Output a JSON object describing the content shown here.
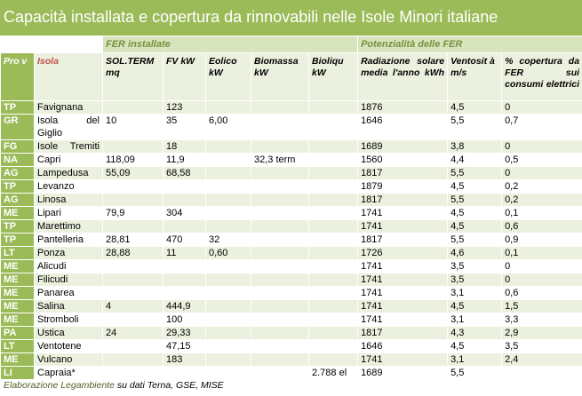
{
  "title": "Capacità installata e copertura da rinnovabili nelle Isole Minori italiane",
  "bands": {
    "fer_installate": "FER installate",
    "potenzialita": "Potenzialità delle FER"
  },
  "headers": {
    "prov": "Pro v",
    "isola": "Isola",
    "solterm": "SOL.TERM mq",
    "fv": "FV kW",
    "eolico": "Eolico kW",
    "biomassa": "Biomassa kW",
    "bioliqu": "Bioliqu kW",
    "radiazione": "Radiazione solare media l'anno kWh",
    "vento": "Ventosit à m/s",
    "copertura": "% copertura da FER sui consumi elettrici"
  },
  "rows": [
    {
      "prov": "TP",
      "isola": "Favignana",
      "sol": "",
      "fv": "123",
      "eol": "",
      "bio": "",
      "bliq": "",
      "rad": "1876",
      "vent": "4,5",
      "cop": "0"
    },
    {
      "prov": "GR",
      "isola": "Isola del Giglio",
      "sol": "10",
      "fv": "35",
      "eol": "6,00",
      "bio": "",
      "bliq": "",
      "rad": "1646",
      "vent": "5,5",
      "cop": "0,7"
    },
    {
      "prov": "FG",
      "isola": "Isole Tremiti",
      "sol": "",
      "fv": "18",
      "eol": "",
      "bio": "",
      "bliq": "",
      "rad": "1689",
      "vent": "3,8",
      "cop": "0"
    },
    {
      "prov": "NA",
      "isola": "Capri",
      "sol": "118,09",
      "fv": "11,9",
      "eol": "",
      "bio": "32,3 term",
      "bliq": "",
      "rad": "1560",
      "vent": "4,4",
      "cop": "0,5"
    },
    {
      "prov": "AG",
      "isola": "Lampedusa",
      "sol": "55,09",
      "fv": "68,58",
      "eol": "",
      "bio": "",
      "bliq": "",
      "rad": "1817",
      "vent": "5,5",
      "cop": "0"
    },
    {
      "prov": "TP",
      "isola": "Levanzo",
      "sol": "",
      "fv": "",
      "eol": "",
      "bio": "",
      "bliq": "",
      "rad": "1879",
      "vent": "4,5",
      "cop": "0,2"
    },
    {
      "prov": "AG",
      "isola": "Linosa",
      "sol": "",
      "fv": "",
      "eol": "",
      "bio": "",
      "bliq": "",
      "rad": "1817",
      "vent": "5,5",
      "cop": "0,2"
    },
    {
      "prov": "ME",
      "isola": "Lipari",
      "sol": "79,9",
      "fv": "304",
      "eol": "",
      "bio": "",
      "bliq": "",
      "rad": "1741",
      "vent": "4,5",
      "cop": "0,1"
    },
    {
      "prov": "TP",
      "isola": "Marettimo",
      "sol": "",
      "fv": "",
      "eol": "",
      "bio": "",
      "bliq": "",
      "rad": "1741",
      "vent": "4,5",
      "cop": "0,6"
    },
    {
      "prov": "TP",
      "isola": "Pantelleria",
      "sol": "28,81",
      "fv": "470",
      "eol": "32",
      "bio": "",
      "bliq": "",
      "rad": "1817",
      "vent": "5,5",
      "cop": "0,9"
    },
    {
      "prov": "LT",
      "isola": "Ponza",
      "sol": "28,88",
      "fv": "11",
      "eol": "0,60",
      "bio": "",
      "bliq": "",
      "rad": "1726",
      "vent": "4,6",
      "cop": "0,1"
    },
    {
      "prov": "ME",
      "isola": "Alicudi",
      "sol": "",
      "fv": "",
      "eol": "",
      "bio": "",
      "bliq": "",
      "rad": "1741",
      "vent": "3,5",
      "cop": "0"
    },
    {
      "prov": "ME",
      "isola": "Filicudi",
      "sol": "",
      "fv": "",
      "eol": "",
      "bio": "",
      "bliq": "",
      "rad": "1741",
      "vent": "3,5",
      "cop": "0"
    },
    {
      "prov": "ME",
      "isola": "Panarea",
      "sol": "",
      "fv": "",
      "eol": "",
      "bio": "",
      "bliq": "",
      "rad": "1741",
      "vent": "3,1",
      "cop": "0,6"
    },
    {
      "prov": "ME",
      "isola": "Salina",
      "sol": "4",
      "fv": "444,9",
      "eol": "",
      "bio": "",
      "bliq": "",
      "rad": "1741",
      "vent": "4,5",
      "cop": "1,5"
    },
    {
      "prov": "ME",
      "isola": "Stromboli",
      "sol": "",
      "fv": "100",
      "eol": "",
      "bio": "",
      "bliq": "",
      "rad": "1741",
      "vent": "3,1",
      "cop": "3,3"
    },
    {
      "prov": "PA",
      "isola": "Ustica",
      "sol": "24",
      "fv": "29,33",
      "eol": "",
      "bio": "",
      "bliq": "",
      "rad": "1817",
      "vent": "4,3",
      "cop": "2,9"
    },
    {
      "prov": "LT",
      "isola": "Ventotene",
      "sol": "",
      "fv": "47,15",
      "eol": "",
      "bio": "",
      "bliq": "",
      "rad": "1646",
      "vent": "4,5",
      "cop": "3,5"
    },
    {
      "prov": "ME",
      "isola": "Vulcano",
      "sol": "",
      "fv": "183",
      "eol": "",
      "bio": "",
      "bliq": "",
      "rad": "1741",
      "vent": "3,1",
      "cop": "2,4"
    },
    {
      "prov": "LI",
      "isola": "Capraia*",
      "sol": "",
      "fv": "",
      "eol": "",
      "bio": "",
      "bliq": "2.788 el",
      "rad": "1689",
      "vent": "5,5",
      "cop": ""
    }
  ],
  "note": {
    "part1": "Elaborazione Legambiente",
    "part2": " su dati Terna, GSE, MISE"
  },
  "colors": {
    "accent": "#9bbb59",
    "band": "#d7e4bd",
    "row": "#ebf1de",
    "header_text": "#76923c",
    "isola_header": "#c0504d"
  }
}
